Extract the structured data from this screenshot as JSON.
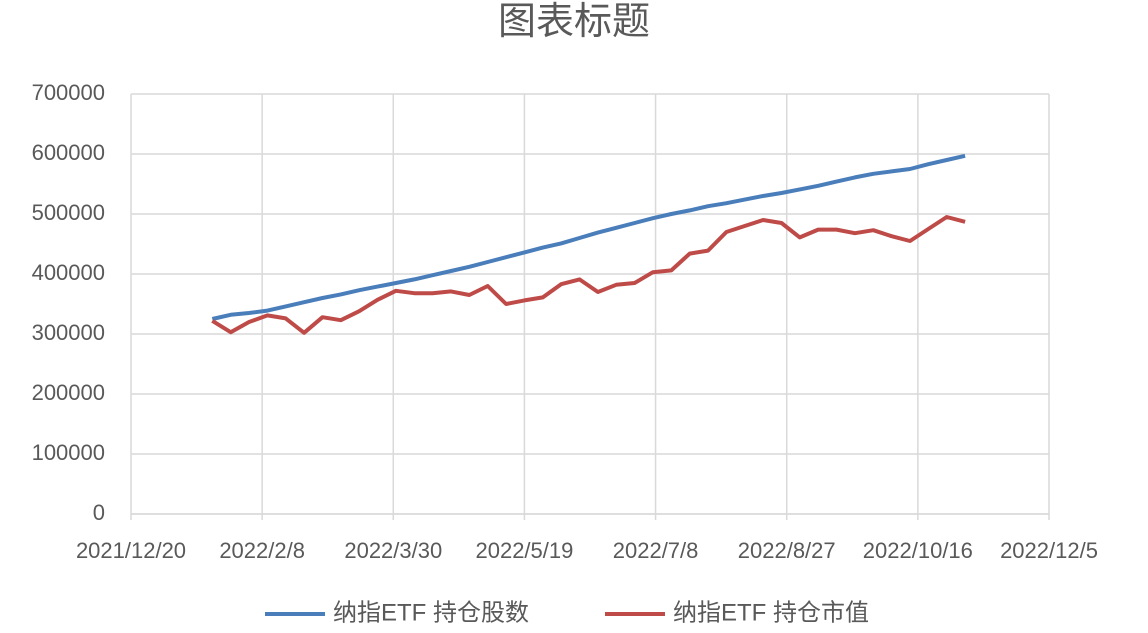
{
  "chart_data": {
    "type": "line",
    "title": "图表标题",
    "x": [
      "2022/1/20",
      "2022/1/27",
      "2022/2/3",
      "2022/2/10",
      "2022/2/17",
      "2022/2/24",
      "2022/3/3",
      "2022/3/10",
      "2022/3/17",
      "2022/3/24",
      "2022/3/31",
      "2022/4/7",
      "2022/4/14",
      "2022/4/21",
      "2022/4/28",
      "2022/5/5",
      "2022/5/12",
      "2022/5/19",
      "2022/5/26",
      "2022/6/2",
      "2022/6/9",
      "2022/6/16",
      "2022/6/23",
      "2022/6/30",
      "2022/7/7",
      "2022/7/14",
      "2022/7/21",
      "2022/7/28",
      "2022/8/4",
      "2022/8/11",
      "2022/8/18",
      "2022/8/25",
      "2022/9/1",
      "2022/9/8",
      "2022/9/15",
      "2022/9/22",
      "2022/9/29",
      "2022/10/6",
      "2022/10/13",
      "2022/10/20",
      "2022/10/27",
      "2022/11/3"
    ],
    "series": [
      {
        "name": "纳指ETF 持仓股数",
        "color": "#4a7ebb",
        "values": [
          325000,
          332000,
          335000,
          339000,
          346000,
          353000,
          360000,
          366000,
          373000,
          379000,
          385000,
          391000,
          398000,
          405000,
          412000,
          420000,
          428000,
          436000,
          444000,
          451000,
          460000,
          469000,
          477000,
          485000,
          493000,
          500000,
          506000,
          513000,
          518000,
          524000,
          530000,
          535000,
          541000,
          547000,
          554000,
          561000,
          567000,
          571000,
          575000,
          583000,
          590000,
          597000
        ]
      },
      {
        "name": "纳指ETF 持仓市值",
        "color": "#be4b48",
        "values": [
          322000,
          303000,
          320000,
          331000,
          326000,
          302000,
          328000,
          323000,
          338000,
          357000,
          372000,
          368000,
          368000,
          371000,
          365000,
          380000,
          350000,
          356000,
          361000,
          383000,
          391000,
          370000,
          382000,
          385000,
          403000,
          406000,
          434000,
          439000,
          470000,
          480000,
          490000,
          485000,
          461000,
          474000,
          474000,
          468000,
          473000,
          463000,
          455000,
          475000,
          495000,
          487000
        ]
      }
    ],
    "xlim": [
      "2021/12/20",
      "2022/12/5"
    ],
    "xticks": [
      "2021/12/20",
      "2022/2/8",
      "2022/3/30",
      "2022/5/19",
      "2022/7/8",
      "2022/8/27",
      "2022/10/16",
      "2022/12/5"
    ],
    "ylim": [
      0,
      700000
    ],
    "yticks": [
      0,
      100000,
      200000,
      300000,
      400000,
      500000,
      600000,
      700000
    ],
    "grid": true,
    "legend": "bottom"
  }
}
